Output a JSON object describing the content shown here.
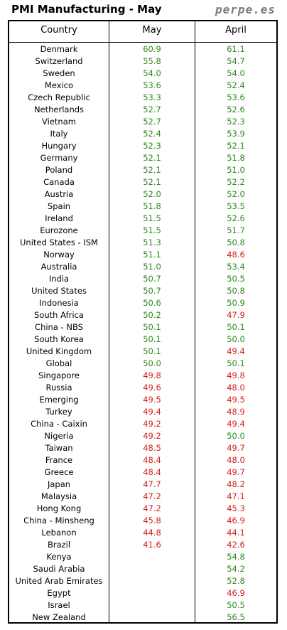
{
  "header": {
    "title": "PMI Manufacturing - May",
    "brand": "perpe.es"
  },
  "columns": [
    "Country",
    "May",
    "April"
  ],
  "colors": {
    "expansion": "#2f8a1e",
    "contraction": "#d42020"
  },
  "rows": [
    {
      "country": "Denmark",
      "may": "60.9",
      "april": "61.1"
    },
    {
      "country": "Switzerland",
      "may": "55.8",
      "april": "54.7"
    },
    {
      "country": "Sweden",
      "may": "54.0",
      "april": "54.0"
    },
    {
      "country": "Mexico",
      "may": "53.6",
      "april": "52.4"
    },
    {
      "country": "Czech Republic",
      "may": "53.3",
      "april": "53.6"
    },
    {
      "country": "Netherlands",
      "may": "52.7",
      "april": "52.6"
    },
    {
      "country": "Vietnam",
      "may": "52.7",
      "april": "52.3"
    },
    {
      "country": "Italy",
      "may": "52.4",
      "april": "53.9"
    },
    {
      "country": "Hungary",
      "may": "52.3",
      "april": "52.1"
    },
    {
      "country": "Germany",
      "may": "52.1",
      "april": "51.8"
    },
    {
      "country": "Poland",
      "may": "52.1",
      "april": "51.0"
    },
    {
      "country": "Canada",
      "may": "52.1",
      "april": "52.2"
    },
    {
      "country": "Austria",
      "may": "52.0",
      "april": "52.0"
    },
    {
      "country": "Spain",
      "may": "51.8",
      "april": "53.5"
    },
    {
      "country": "Ireland",
      "may": "51.5",
      "april": "52.6"
    },
    {
      "country": "Eurozone",
      "may": "51.5",
      "april": "51.7"
    },
    {
      "country": "United States - ISM",
      "may": "51.3",
      "april": "50.8"
    },
    {
      "country": "Norway",
      "may": "51.1",
      "april": "48.6"
    },
    {
      "country": "Australia",
      "may": "51.0",
      "april": "53.4"
    },
    {
      "country": "India",
      "may": "50.7",
      "april": "50.5"
    },
    {
      "country": "United States",
      "may": "50.7",
      "april": "50.8"
    },
    {
      "country": "Indonesia",
      "may": "50.6",
      "april": "50.9"
    },
    {
      "country": "South Africa",
      "may": "50.2",
      "april": "47.9"
    },
    {
      "country": "China - NBS",
      "may": "50.1",
      "april": "50.1"
    },
    {
      "country": "South Korea",
      "may": "50.1",
      "april": "50.0"
    },
    {
      "country": "United Kingdom",
      "may": "50.1",
      "april": "49.4"
    },
    {
      "country": "Global",
      "may": "50.0",
      "april": "50.1"
    },
    {
      "country": "Singapore",
      "may": "49.8",
      "april": "49.8"
    },
    {
      "country": "Russia",
      "may": "49.6",
      "april": "48.0"
    },
    {
      "country": "Emerging",
      "may": "49.5",
      "april": "49.5"
    },
    {
      "country": "Turkey",
      "may": "49.4",
      "april": "48.9"
    },
    {
      "country": "China - Caixin",
      "may": "49.2",
      "april": "49.4"
    },
    {
      "country": "Nigeria",
      "may": "49.2",
      "april": "50.0"
    },
    {
      "country": "Taiwan",
      "may": "48.5",
      "april": "49.7"
    },
    {
      "country": "France",
      "may": "48.4",
      "april": "48.0"
    },
    {
      "country": "Greece",
      "may": "48.4",
      "april": "49.7"
    },
    {
      "country": "Japan",
      "may": "47.7",
      "april": "48.2"
    },
    {
      "country": "Malaysia",
      "may": "47.2",
      "april": "47.1"
    },
    {
      "country": "Hong Kong",
      "may": "47.2",
      "april": "45.3"
    },
    {
      "country": "China - Minsheng",
      "may": "45.8",
      "april": "46.9"
    },
    {
      "country": "Lebanon",
      "may": "44.8",
      "april": "44.1"
    },
    {
      "country": "Brazil",
      "may": "41.6",
      "april": "42.6"
    },
    {
      "country": "Kenya",
      "may": "",
      "april": "54.8"
    },
    {
      "country": "Saudi Arabia",
      "may": "",
      "april": "54.2"
    },
    {
      "country": "United Arab Emirates",
      "may": "",
      "april": "52.8"
    },
    {
      "country": "Egypt",
      "may": "",
      "april": "46.9"
    },
    {
      "country": "Israel",
      "may": "",
      "april": "50.5"
    },
    {
      "country": "New Zealand",
      "may": "",
      "april": "56.5"
    }
  ]
}
